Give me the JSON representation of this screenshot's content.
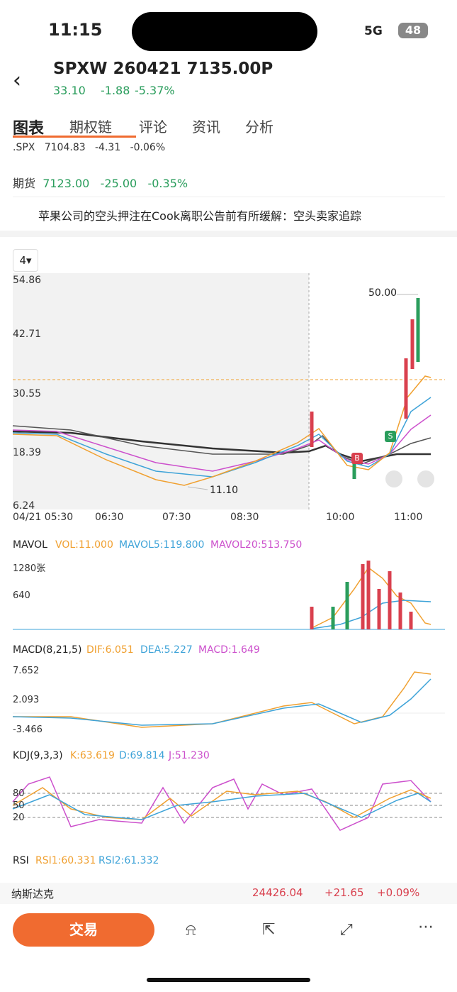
{
  "status": {
    "time": "11:15",
    "network": "5G",
    "battery": "48"
  },
  "header": {
    "title": "SPXW 260421 7135.00P",
    "price": "33.10",
    "change": "-1.88",
    "pct": "-5.37%"
  },
  "tabs": [
    "图表",
    "期权链",
    "评论",
    "资讯",
    "分析"
  ],
  "spx": {
    "name": ".SPX",
    "price": "7104.83",
    "change": "-4.31",
    "pct": "-0.06%"
  },
  "futures": {
    "name": "期货",
    "price": "7123.00",
    "change": "-25.00",
    "pct": "-0.35%"
  },
  "news": "苹果公司的空头押注在Cook离职公告前有所缓解：空头卖家追踪",
  "chart": {
    "period": "4",
    "yticks": [
      "54.86",
      "42.71",
      "30.55",
      "18.39",
      "6.24"
    ],
    "xlabels": [
      "04/21 05:30",
      "06:30",
      "07:30",
      "08:30",
      "10:00",
      "11:00"
    ],
    "high": "50.00",
    "low": "11.10",
    "buy": "B",
    "sell": "S"
  },
  "mavol": {
    "title": "MAVOL",
    "items": [
      "VOL:11.000",
      "MAVOL5:119.800",
      "MAVOL20:513.750"
    ],
    "ticks": [
      "1280张",
      "640"
    ]
  },
  "macd": {
    "title": "MACD(8,21,5)",
    "items": [
      "DIF:6.051",
      "DEA:5.227",
      "MACD:1.649"
    ],
    "ticks": [
      "7.652",
      "2.093",
      "-3.466"
    ]
  },
  "kdj": {
    "title": "KDJ(9,3,3)",
    "items": [
      "K:63.619",
      "D:69.814",
      "J:51.230"
    ],
    "ticks": [
      "80",
      "50",
      "20"
    ]
  },
  "rsi": {
    "title": "RSI",
    "items": [
      "RSI1:60.331",
      "RSI2:61.332"
    ]
  },
  "ticker": {
    "name": "纳斯达克",
    "price": "24426.04",
    "change": "+21.65",
    "pct": "+0.09%"
  },
  "trade": "交易"
}
